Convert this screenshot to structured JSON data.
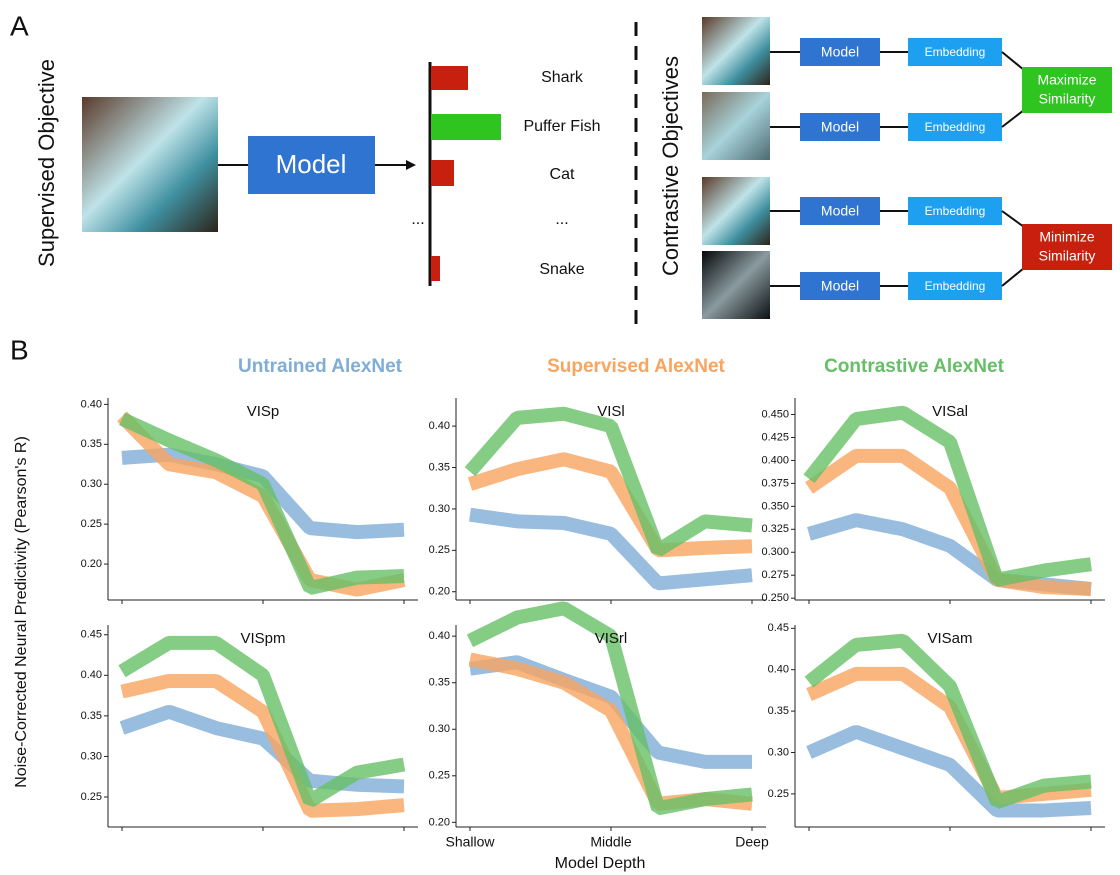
{
  "panel_a": {
    "label": "A",
    "supervised": {
      "title": "Supervised Objective",
      "model": "Model",
      "classes": [
        "Shark",
        "Puffer Fish",
        "Cat",
        "...",
        "Snake"
      ],
      "bar_ellipsis": "..."
    },
    "contrastive": {
      "title": "Contrastive Objectives",
      "rows": [
        {
          "model": "Model",
          "embedding": "Embedding"
        },
        {
          "model": "Model",
          "embedding": "Embedding"
        },
        {
          "model": "Model",
          "embedding": "Embedding"
        },
        {
          "model": "Model",
          "embedding": "Embedding"
        }
      ],
      "maximize": [
        "Maximize",
        "Similarity"
      ],
      "minimize": [
        "Minimize",
        "Similarity"
      ]
    }
  },
  "panel_b": {
    "label": "B",
    "legend": [
      {
        "name": "Untrained AlexNet",
        "color": "#7fadd6"
      },
      {
        "name": "Supervised AlexNet",
        "color": "#f9a45f"
      },
      {
        "name": "Contrastive AlexNet",
        "color": "#66bf66"
      }
    ],
    "ylabel": "Noise-Corrected Neural Predictivity (Pearson's R)",
    "xlabel": "Model Depth"
  },
  "chart_data": [
    {
      "type": "line",
      "title": "VISp",
      "x": [
        0,
        1,
        2,
        3,
        4,
        5,
        6
      ],
      "xlim": [
        0,
        6
      ],
      "xticks": [
        0,
        3,
        6
      ],
      "show_xtick_labels": false,
      "ylim": [
        0.155,
        0.408
      ],
      "yticks": [
        {
          "value": 0.2,
          "label": "0.20"
        },
        0.25,
        {
          "value": 0.3,
          "label": "0.30"
        },
        0.35,
        {
          "value": 0.4,
          "label": "0.40"
        }
      ],
      "series": [
        {
          "values": [
            0.333,
            0.337,
            0.325,
            0.31,
            0.245,
            0.24,
            0.243
          ]
        },
        {
          "values": [
            0.385,
            0.325,
            0.315,
            0.285,
            0.18,
            0.168,
            0.18
          ]
        },
        {
          "values": [
            0.382,
            0.355,
            0.33,
            0.3,
            0.17,
            0.183,
            0.185
          ]
        }
      ]
    },
    {
      "type": "line",
      "title": "VISl",
      "x": [
        0,
        1,
        2,
        3,
        4,
        5,
        6
      ],
      "xlim": [
        0,
        6
      ],
      "xticks": [
        0,
        3,
        6
      ],
      "show_xtick_labels": false,
      "ylim": [
        0.19,
        0.434
      ],
      "yticks": [
        {
          "value": 0.2,
          "label": "0.20"
        },
        0.25,
        {
          "value": 0.3,
          "label": "0.30"
        },
        0.35,
        {
          "value": 0.4,
          "label": "0.40"
        }
      ],
      "series": [
        {
          "values": [
            0.293,
            0.285,
            0.283,
            0.27,
            0.21,
            0.215,
            0.22
          ]
        },
        {
          "values": [
            0.33,
            0.348,
            0.36,
            0.345,
            0.25,
            0.253,
            0.255
          ]
        },
        {
          "values": [
            0.345,
            0.41,
            0.415,
            0.4,
            0.25,
            0.285,
            0.28
          ]
        }
      ]
    },
    {
      "type": "line",
      "title": "VISal",
      "x": [
        0,
        1,
        2,
        3,
        4,
        5,
        6
      ],
      "xlim": [
        0,
        6
      ],
      "xticks": [
        0,
        3,
        6
      ],
      "show_xtick_labels": false,
      "ylim": [
        0.248,
        0.468
      ],
      "yticks": [
        {
          "value": 0.25,
          "label": "0.250"
        },
        0.275,
        {
          "value": 0.3,
          "label": "0.300"
        },
        0.325,
        {
          "value": 0.35,
          "label": "0.350"
        },
        0.375,
        {
          "value": 0.4,
          "label": "0.400"
        },
        0.425,
        {
          "value": 0.45,
          "label": "0.450"
        }
      ],
      "series": [
        {
          "values": [
            0.32,
            0.335,
            0.325,
            0.307,
            0.27,
            0.265,
            0.26
          ]
        },
        {
          "values": [
            0.37,
            0.405,
            0.405,
            0.37,
            0.27,
            0.262,
            0.26
          ]
        },
        {
          "values": [
            0.38,
            0.445,
            0.452,
            0.42,
            0.27,
            0.28,
            0.287
          ]
        }
      ]
    },
    {
      "type": "line",
      "title": "VISpm",
      "x": [
        0,
        1,
        2,
        3,
        4,
        5,
        6
      ],
      "xlim": [
        0,
        6
      ],
      "xticks": [
        0,
        3,
        6
      ],
      "show_xtick_labels": false,
      "ylim": [
        0.213,
        0.462
      ],
      "yticks": [
        0.25,
        {
          "value": 0.3,
          "label": "0.30"
        },
        0.35,
        {
          "value": 0.4,
          "label": "0.40"
        },
        0.45
      ],
      "series": [
        {
          "values": [
            0.335,
            0.355,
            0.335,
            0.322,
            0.27,
            0.265,
            0.263
          ]
        },
        {
          "values": [
            0.38,
            0.393,
            0.393,
            0.355,
            0.233,
            0.235,
            0.24
          ]
        },
        {
          "values": [
            0.405,
            0.44,
            0.44,
            0.4,
            0.245,
            0.28,
            0.29
          ]
        }
      ]
    },
    {
      "type": "line",
      "title": "VISrl",
      "x": [
        0,
        1,
        2,
        3,
        4,
        5,
        6
      ],
      "xlim": [
        0,
        6
      ],
      "xticks": [
        {
          "value": 0,
          "label": "Shallow"
        },
        {
          "value": 3,
          "label": "Middle"
        },
        {
          "value": 6,
          "label": "Deep"
        }
      ],
      "show_xtick_labels": true,
      "ylim": [
        0.195,
        0.412
      ],
      "yticks": [
        {
          "value": 0.2,
          "label": "0.20"
        },
        0.25,
        {
          "value": 0.3,
          "label": "0.30"
        },
        0.35,
        {
          "value": 0.4,
          "label": "0.40"
        }
      ],
      "series": [
        {
          "values": [
            0.365,
            0.372,
            0.353,
            0.335,
            0.275,
            0.265,
            0.265
          ]
        },
        {
          "values": [
            0.375,
            0.365,
            0.35,
            0.32,
            0.22,
            0.225,
            0.22
          ]
        },
        {
          "values": [
            0.395,
            0.42,
            0.43,
            0.4,
            0.215,
            0.225,
            0.23
          ]
        }
      ]
    },
    {
      "type": "line",
      "title": "VISam",
      "x": [
        0,
        1,
        2,
        3,
        4,
        5,
        6
      ],
      "xlim": [
        0,
        6
      ],
      "xticks": [
        0,
        3,
        6
      ],
      "show_xtick_labels": false,
      "ylim": [
        0.21,
        0.454
      ],
      "yticks": [
        0.25,
        {
          "value": 0.3,
          "label": "0.30"
        },
        0.35,
        {
          "value": 0.4,
          "label": "0.40"
        },
        0.45
      ],
      "series": [
        {
          "values": [
            0.3,
            0.325,
            0.305,
            0.285,
            0.23,
            0.23,
            0.233
          ]
        },
        {
          "values": [
            0.37,
            0.395,
            0.395,
            0.355,
            0.245,
            0.25,
            0.255
          ]
        },
        {
          "values": [
            0.385,
            0.43,
            0.435,
            0.38,
            0.24,
            0.26,
            0.265
          ]
        }
      ]
    }
  ]
}
